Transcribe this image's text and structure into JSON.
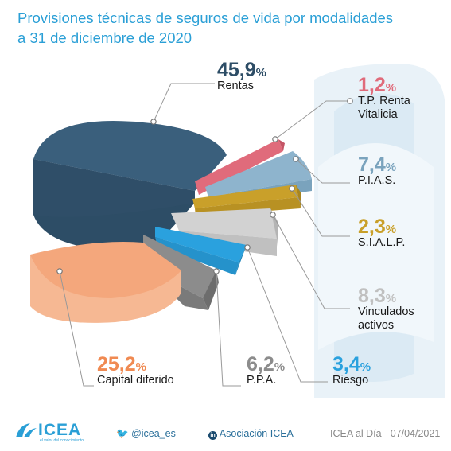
{
  "title_line1": "Provisiones técnicas de seguros de vida por modalidades",
  "title_line2": "a 31 de diciembre de 2020",
  "chart_data": {
    "type": "pie",
    "title": "Provisiones técnicas de seguros de vida por modalidades a 31 de diciembre de 2020",
    "categories": [
      "Rentas",
      "T.P. Renta Vitalicia",
      "P.I.A.S.",
      "S.I.A.L.P.",
      "Vinculados activos",
      "Riesgo",
      "P.P.A.",
      "Capital diferido"
    ],
    "values": [
      45.9,
      1.2,
      7.4,
      2.3,
      8.3,
      3.4,
      6.2,
      25.2
    ],
    "unit": "%",
    "colors": [
      "#3a5f7c",
      "#e06b7b",
      "#8eb4cd",
      "#c9a02a",
      "#c8c8c8",
      "#2aa1de",
      "#8c8c8c",
      "#f4a77c"
    ]
  },
  "labels": {
    "rentas": {
      "value": "45,9",
      "unit": "%",
      "name": "Rentas"
    },
    "tp": {
      "value": "1,2",
      "unit": "%",
      "name1": "T.P. Renta",
      "name2": "Vitalicia"
    },
    "pias": {
      "value": "7,4",
      "unit": "%",
      "name": "P.I.A.S."
    },
    "sialp": {
      "value": "2,3",
      "unit": "%",
      "name": "S.I.A.L.P."
    },
    "vinc": {
      "value": "8,3",
      "unit": "%",
      "name1": "Vinculados",
      "name2": "activos"
    },
    "riesgo": {
      "value": "3,4",
      "unit": "%",
      "name": "Riesgo"
    },
    "ppa": {
      "value": "6,2",
      "unit": "%",
      "name": "P.P.A."
    },
    "capital": {
      "value": "25,2",
      "unit": "%",
      "name": "Capital diferido"
    }
  },
  "footer": {
    "logo": "ICEA",
    "logo_tagline": "el valor del conocimiento",
    "twitter": "@icea_es",
    "linkedin": "Asociación ICEA",
    "date": "ICEA al Día - 07/04/2021"
  },
  "colors": {
    "title": "#2a9fd6",
    "accent_blue": "#2a9fd6",
    "footer_text": "#2a6f9a"
  }
}
